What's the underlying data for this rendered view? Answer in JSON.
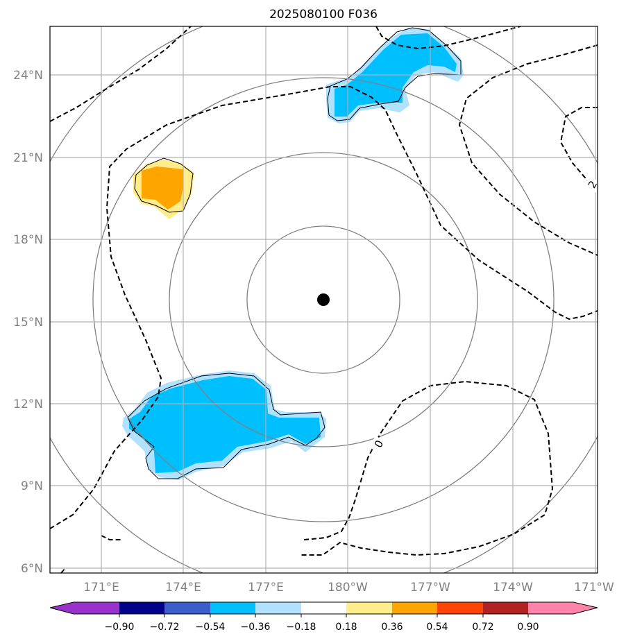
{
  "title": "2025080100 F036",
  "map": {
    "lat_labels": [
      "24°N",
      "21°N",
      "18°N",
      "15°N",
      "12°N",
      "9°N",
      "6°N"
    ],
    "lon_labels": [
      "171°E",
      "174°E",
      "177°E",
      "180°W",
      "177°W",
      "174°W",
      "171°W"
    ],
    "contour_labels": [
      "0",
      "2"
    ],
    "center_marker": "storm-center"
  },
  "colorbar": {
    "tick_labels": [
      "−0.90",
      "−0.72",
      "−0.54",
      "−0.36",
      "−0.18",
      "0.18",
      "0.36",
      "0.54",
      "0.72",
      "0.90"
    ],
    "colors": [
      "#9932CC",
      "#00008B",
      "#3A5FCD",
      "#00BFFF",
      "#B0E2FF",
      "#FFFFFF",
      "#FFEC8B",
      "#FFA500",
      "#FF4500",
      "#B22222",
      "#FF82AB"
    ]
  }
}
